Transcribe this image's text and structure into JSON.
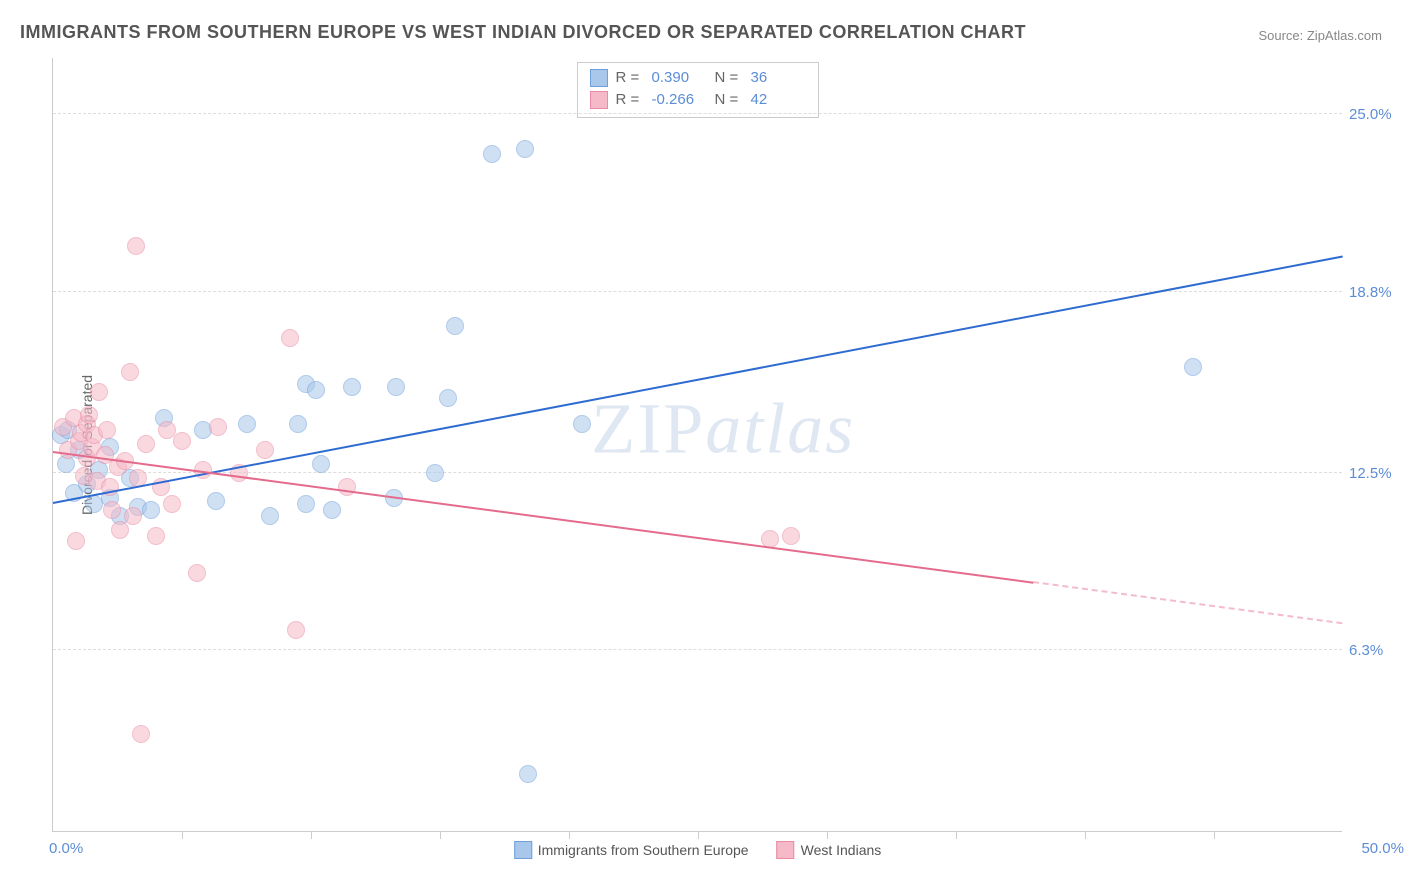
{
  "title": "IMMIGRANTS FROM SOUTHERN EUROPE VS WEST INDIAN DIVORCED OR SEPARATED CORRELATION CHART",
  "source_prefix": "Source: ",
  "source_name": "ZipAtlas.com",
  "watermark_zip": "ZIP",
  "watermark_atlas": "atlas",
  "y_axis_label": "Divorced or Separated",
  "chart": {
    "type": "scatter",
    "background_color": "#ffffff",
    "grid_color": "#dddddd",
    "axis_color": "#cccccc",
    "tick_label_color": "#5b8dd6",
    "xlim": [
      0,
      50
    ],
    "ylim": [
      0,
      27
    ],
    "x_start_label": "0.0%",
    "x_end_label": "50.0%",
    "y_ticks": [
      {
        "value": 6.3,
        "label": "6.3%"
      },
      {
        "value": 12.5,
        "label": "12.5%"
      },
      {
        "value": 18.8,
        "label": "18.8%"
      },
      {
        "value": 25.0,
        "label": "25.0%"
      }
    ],
    "x_tick_positions": [
      5,
      10,
      15,
      20,
      25,
      30,
      35,
      40,
      45
    ],
    "point_radius": 9,
    "point_opacity": 0.55,
    "series": [
      {
        "name": "Immigrants from Southern Europe",
        "color_fill": "#a9c7ea",
        "color_stroke": "#6fa0db",
        "r_label": "R =",
        "r_value": "0.390",
        "n_label": "N =",
        "n_value": "36",
        "trend": {
          "x1": 0,
          "y1": 11.4,
          "x2": 50,
          "y2": 20.0,
          "solid_to_x": 50,
          "color": "#2e6bd0"
        },
        "points": [
          [
            0.3,
            13.8
          ],
          [
            0.5,
            12.8
          ],
          [
            0.6,
            14.0
          ],
          [
            0.8,
            11.8
          ],
          [
            1.0,
            13.3
          ],
          [
            1.3,
            12.1
          ],
          [
            1.6,
            11.4
          ],
          [
            1.8,
            12.6
          ],
          [
            2.2,
            11.6
          ],
          [
            2.2,
            13.4
          ],
          [
            2.6,
            11.0
          ],
          [
            3.0,
            12.3
          ],
          [
            3.3,
            11.3
          ],
          [
            3.8,
            11.2
          ],
          [
            4.3,
            14.4
          ],
          [
            5.8,
            14.0
          ],
          [
            6.3,
            11.5
          ],
          [
            7.5,
            14.2
          ],
          [
            8.4,
            11.0
          ],
          [
            9.5,
            14.2
          ],
          [
            9.8,
            11.4
          ],
          [
            9.8,
            15.6
          ],
          [
            10.2,
            15.4
          ],
          [
            10.4,
            12.8
          ],
          [
            10.8,
            11.2
          ],
          [
            11.6,
            15.5
          ],
          [
            13.2,
            11.6
          ],
          [
            13.3,
            15.5
          ],
          [
            14.8,
            12.5
          ],
          [
            15.3,
            15.1
          ],
          [
            15.6,
            17.6
          ],
          [
            17.0,
            23.6
          ],
          [
            18.3,
            23.8
          ],
          [
            18.4,
            2.0
          ],
          [
            20.5,
            14.2
          ],
          [
            44.2,
            16.2
          ]
        ]
      },
      {
        "name": "West Indians",
        "color_fill": "#f5b9c8",
        "color_stroke": "#e98ba4",
        "r_label": "R =",
        "r_value": "-0.266",
        "n_label": "N =",
        "n_value": "42",
        "trend": {
          "x1": 0,
          "y1": 13.2,
          "x2": 50,
          "y2": 7.2,
          "solid_to_x": 38,
          "color": "#e56b8d"
        },
        "points": [
          [
            0.4,
            14.1
          ],
          [
            0.6,
            13.3
          ],
          [
            0.8,
            14.4
          ],
          [
            0.9,
            10.1
          ],
          [
            1.0,
            13.6
          ],
          [
            1.1,
            13.9
          ],
          [
            1.2,
            12.4
          ],
          [
            1.3,
            14.2
          ],
          [
            1.3,
            13.0
          ],
          [
            1.4,
            14.5
          ],
          [
            1.5,
            13.4
          ],
          [
            1.6,
            13.8
          ],
          [
            1.7,
            12.2
          ],
          [
            1.8,
            15.3
          ],
          [
            2.0,
            13.1
          ],
          [
            2.1,
            14.0
          ],
          [
            2.2,
            12.0
          ],
          [
            2.3,
            11.2
          ],
          [
            2.5,
            12.7
          ],
          [
            2.6,
            10.5
          ],
          [
            2.8,
            12.9
          ],
          [
            3.0,
            16.0
          ],
          [
            3.1,
            11.0
          ],
          [
            3.2,
            20.4
          ],
          [
            3.3,
            12.3
          ],
          [
            3.4,
            3.4
          ],
          [
            3.6,
            13.5
          ],
          [
            4.0,
            10.3
          ],
          [
            4.2,
            12.0
          ],
          [
            4.4,
            14.0
          ],
          [
            4.6,
            11.4
          ],
          [
            5.0,
            13.6
          ],
          [
            5.6,
            9.0
          ],
          [
            5.8,
            12.6
          ],
          [
            6.4,
            14.1
          ],
          [
            7.2,
            12.5
          ],
          [
            8.2,
            13.3
          ],
          [
            9.2,
            17.2
          ],
          [
            9.4,
            7.0
          ],
          [
            11.4,
            12.0
          ],
          [
            27.8,
            10.2
          ],
          [
            28.6,
            10.3
          ]
        ]
      }
    ]
  }
}
